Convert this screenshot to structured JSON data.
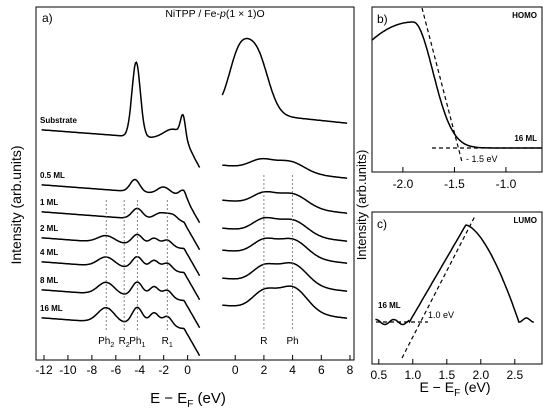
{
  "figure": {
    "ylabel_left": "Intensity (arb.units)",
    "ylabel_right": "Intensity (arb.units)",
    "xlabel_left": "E − E",
    "xlabel_left_sub": "F",
    "xlabel_left_unit": " (eV)",
    "xlabel_right": "E − E",
    "xlabel_right_sub": "F",
    "xlabel_right_unit": " (eV)"
  },
  "chart_data": [
    {
      "type": "line",
      "panel": "a)",
      "title_parts": {
        "pre": "NiTPP / Fe-",
        "ital": "p",
        "post": "(1 × 1)O"
      },
      "x_axis": "E - EF (eV)",
      "xlim_left": [
        -12.5,
        1.2
      ],
      "xlim_right": [
        -1.2,
        8
      ],
      "xticks_left": [
        -12,
        -10,
        -8,
        -6,
        -4,
        -2,
        0
      ],
      "xticks_right": [
        0,
        2,
        4,
        6,
        8
      ],
      "spectra": [
        {
          "label": "Substrate",
          "left_peaks": [
            [
              -4.3,
              85,
              0.35
            ],
            [
              -1.2,
              12,
              0.8
            ],
            [
              -0.4,
              22,
              0.2
            ]
          ],
          "right_peaks": [
            [
              0.2,
              55,
              0.7
            ],
            [
              1.5,
              65,
              0.8
            ]
          ]
        },
        {
          "label": "0.5 ML",
          "left_peaks": [
            [
              -4.4,
              14,
              0.4
            ],
            [
              -2.0,
              8,
              0.5
            ],
            [
              -0.4,
              6,
              0.3
            ]
          ],
          "right_peaks": [
            [
              1.8,
              10,
              0.8
            ],
            [
              3.8,
              12,
              1.0
            ]
          ]
        },
        {
          "label": "1 ML",
          "left_peaks": [
            [
              -4.2,
              12,
              0.45
            ],
            [
              -2.2,
              9,
              0.6
            ],
            [
              -1.2,
              6,
              0.4
            ]
          ],
          "right_peaks": [
            [
              2.0,
              12,
              0.8
            ],
            [
              4.0,
              15,
              1.0
            ]
          ]
        },
        {
          "label": "2 ML",
          "left_peaks": [
            [
              -6.8,
              8,
              0.7
            ],
            [
              -4.2,
              12,
              0.45
            ],
            [
              -2.8,
              9,
              0.4
            ],
            [
              -1.7,
              8,
              0.4
            ]
          ],
          "right_peaks": [
            [
              2.0,
              14,
              0.8
            ],
            [
              4.0,
              17,
              1.0
            ]
          ]
        },
        {
          "label": "4 ML",
          "left_peaks": [
            [
              -6.8,
              11,
              0.7
            ],
            [
              -4.2,
              14,
              0.45
            ],
            [
              -2.8,
              11,
              0.4
            ],
            [
              -1.7,
              9,
              0.4
            ]
          ],
          "right_peaks": [
            [
              2.0,
              15,
              0.8
            ],
            [
              4.0,
              20,
              1.0
            ]
          ]
        },
        {
          "label": "8 ML",
          "left_peaks": [
            [
              -6.8,
              14,
              0.7
            ],
            [
              -4.2,
              17,
              0.45
            ],
            [
              -2.8,
              13,
              0.4
            ],
            [
              -1.7,
              10,
              0.4
            ]
          ],
          "right_peaks": [
            [
              2.0,
              17,
              0.8
            ],
            [
              4.0,
              24,
              1.0
            ]
          ]
        },
        {
          "label": "16 ML",
          "left_peaks": [
            [
              -6.8,
              17,
              0.7
            ],
            [
              -4.2,
              20,
              0.45
            ],
            [
              -2.8,
              15,
              0.4
            ],
            [
              -1.7,
              12,
              0.4
            ]
          ],
          "right_peaks": [
            [
              2.0,
              19,
              0.8
            ],
            [
              4.0,
              28,
              1.0
            ]
          ]
        }
      ],
      "annotations_left": [
        {
          "label": "Ph",
          "sub": "2",
          "x": -6.8
        },
        {
          "label": "R",
          "sub": "2",
          "x": -5.3
        },
        {
          "label": "Ph",
          "sub": "1",
          "x": -4.2
        },
        {
          "label": "R",
          "sub": "1",
          "x": -1.7
        }
      ],
      "annotations_right": [
        {
          "label": "R",
          "sub": "",
          "x": 2.0
        },
        {
          "label": "Ph",
          "sub": "",
          "x": 4.0
        }
      ]
    },
    {
      "type": "line",
      "panel": "b)",
      "legend": "HOMO",
      "curve_label": "16 ML",
      "xlim": [
        -2.3,
        -0.65
      ],
      "xticks": [
        -2.0,
        -1.5,
        -1.0
      ],
      "onset_label": "- 1.5 eV"
    },
    {
      "type": "line",
      "panel": "c)",
      "legend": "LUMO",
      "curve_label": "16 ML",
      "xlim": [
        0.4,
        2.9
      ],
      "xticks": [
        0.5,
        1.0,
        1.5,
        2.0,
        2.5
      ],
      "onset_label": "1.0 eV"
    }
  ]
}
